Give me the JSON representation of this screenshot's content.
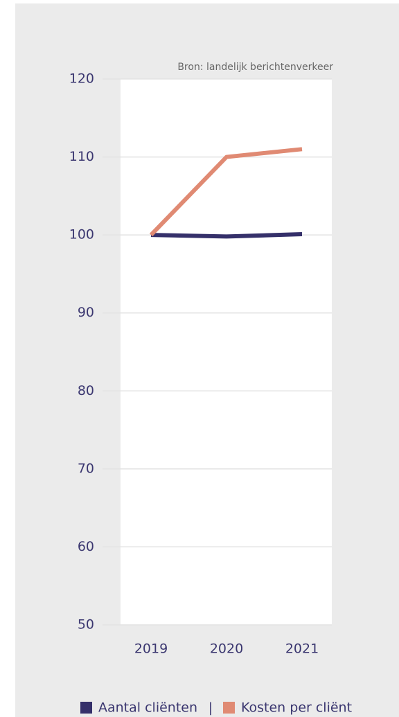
{
  "chart_data": {
    "type": "line",
    "source": "Bron: landelijk berichtenverkeer",
    "categories": [
      "2019",
      "2020",
      "2021"
    ],
    "series": [
      {
        "name": "Aantal cliënten",
        "color": "#35306a",
        "values": [
          100,
          99.8,
          100.1
        ]
      },
      {
        "name": "Kosten per cliënt",
        "color": "#e08a73",
        "values": [
          100,
          110,
          111
        ]
      }
    ],
    "legend_separator": "|",
    "ylim": [
      50,
      120
    ],
    "yticks": [
      50,
      60,
      70,
      80,
      90,
      100,
      110,
      120
    ],
    "grid": true
  }
}
